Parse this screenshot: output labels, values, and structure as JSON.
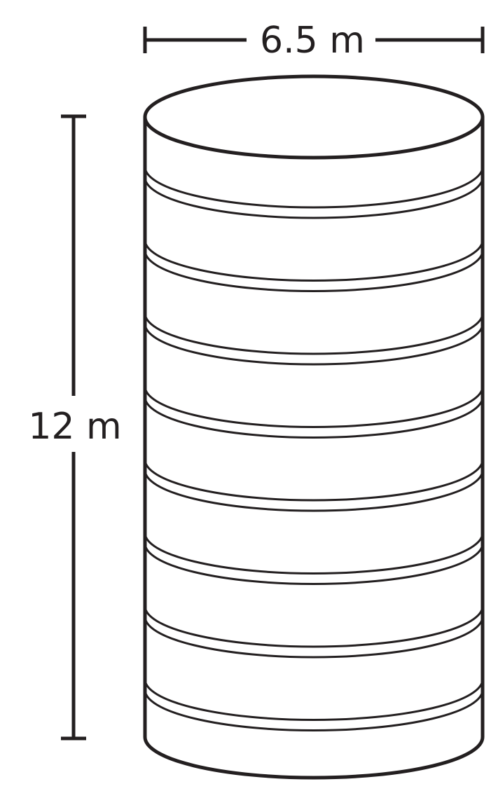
{
  "diameter_label": "6.5 m",
  "height_label": "12 m",
  "bands": 8,
  "colors": {
    "stroke": "#231f20",
    "background": "#ffffff"
  }
}
